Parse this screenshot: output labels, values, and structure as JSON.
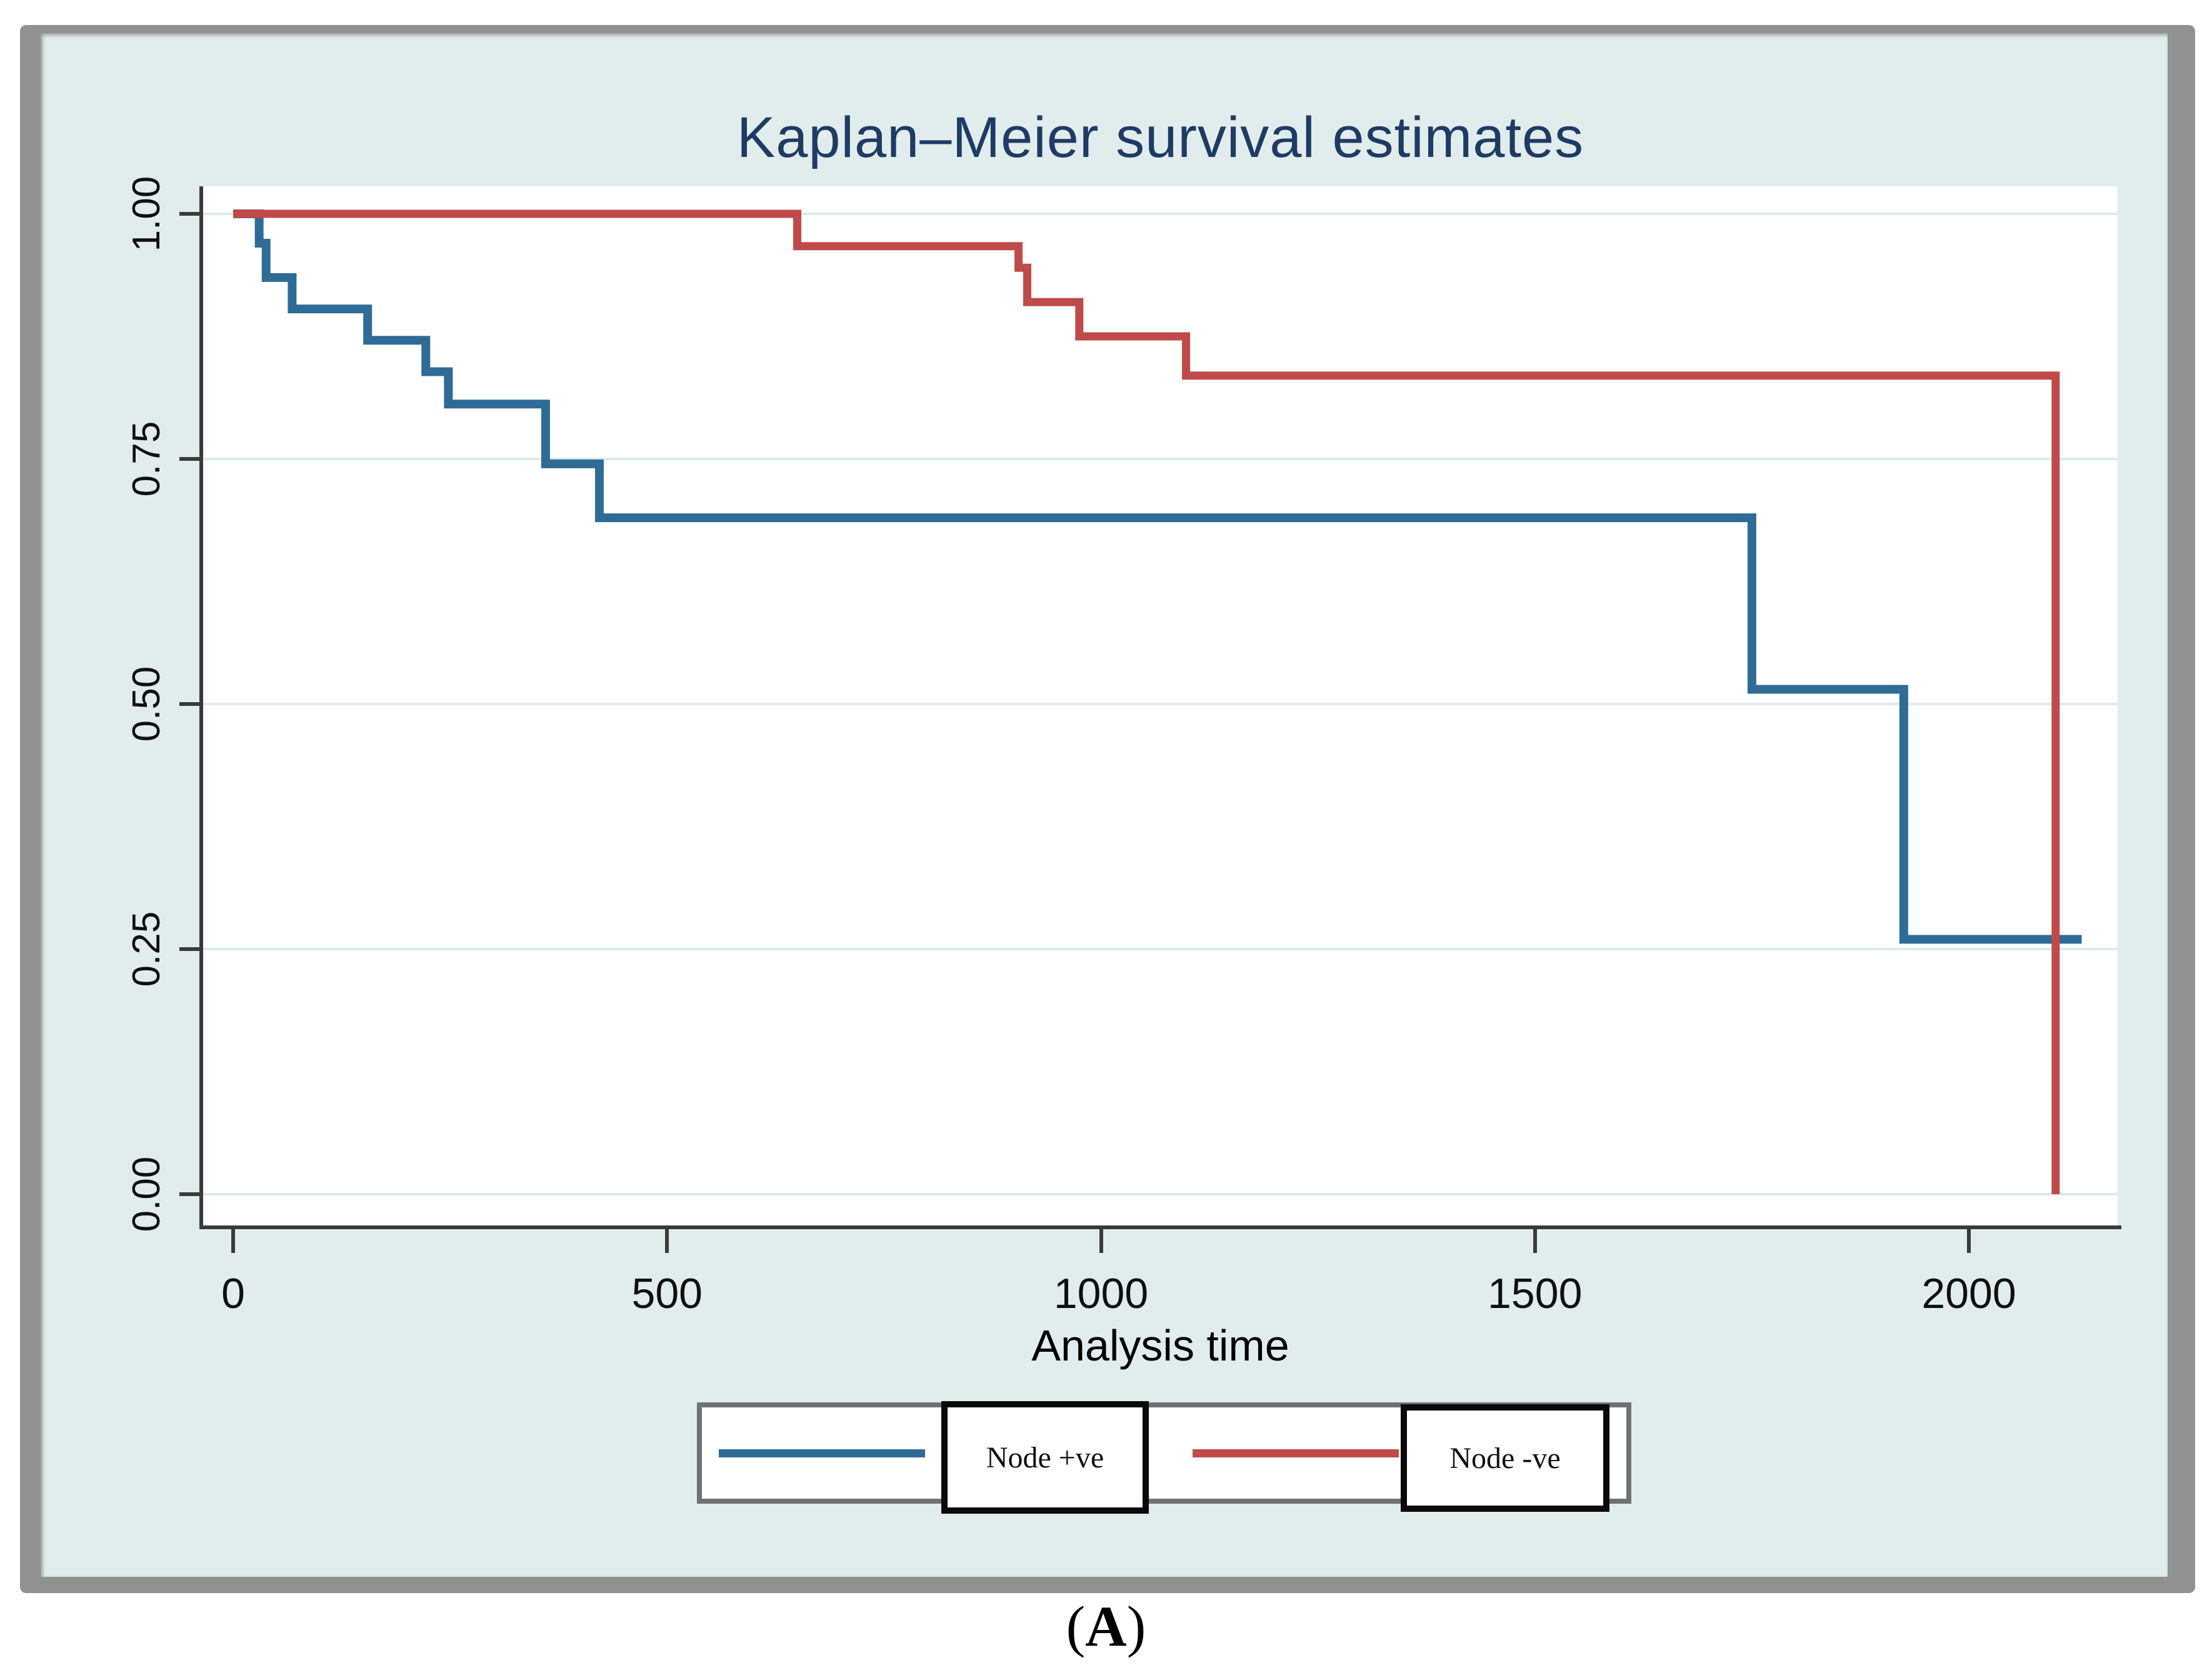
{
  "colors": {
    "figure_background": "#e1ecec",
    "frame_gray": "#8f928f",
    "plot_background": "#ffffff",
    "axis": "#3a3a3a",
    "gridline": "#dcebea",
    "title_navy": "#1e3b64",
    "node_positive_blue": "#2e6c96",
    "node_negative_red": "#c04a49"
  },
  "caption": {
    "open": "(",
    "letter": "A",
    "close": ")"
  },
  "chart_data": {
    "type": "line",
    "subtype": "step-survival",
    "title": "Kaplan–Meier survival estimates",
    "xlabel": "Analysis time",
    "ylabel": "",
    "xlim": [
      0,
      2170
    ],
    "ylim": [
      0.0,
      1.0
    ],
    "grid": "horizontal-only",
    "x_ticks": [
      0,
      500,
      1000,
      1500,
      2000
    ],
    "y_ticks": [
      {
        "label": "1.00",
        "value": 1.0
      },
      {
        "label": "0.75",
        "value": 0.75
      },
      {
        "label": "0.50",
        "value": 0.5
      },
      {
        "label": "0.25",
        "value": 0.25
      },
      {
        "label": "0.00",
        "value": 0.0
      }
    ],
    "series": [
      {
        "name": "Node +ve",
        "color": "#2e6c96",
        "stroke_width": 14,
        "points": [
          [
            0,
            1.0
          ],
          [
            30,
            1.0
          ],
          [
            30,
            0.97
          ],
          [
            38,
            0.97
          ],
          [
            38,
            0.935
          ],
          [
            68,
            0.935
          ],
          [
            68,
            0.903
          ],
          [
            155,
            0.903
          ],
          [
            155,
            0.871
          ],
          [
            222,
            0.871
          ],
          [
            222,
            0.839
          ],
          [
            248,
            0.839
          ],
          [
            248,
            0.806
          ],
          [
            360,
            0.806
          ],
          [
            360,
            0.745
          ],
          [
            422,
            0.745
          ],
          [
            422,
            0.69
          ],
          [
            1750,
            0.69
          ],
          [
            1750,
            0.515
          ],
          [
            1925,
            0.515
          ],
          [
            1925,
            0.26
          ],
          [
            2130,
            0.26
          ]
        ]
      },
      {
        "name": "Node -ve",
        "color": "#c04a49",
        "stroke_width": 13,
        "points": [
          [
            0,
            1.0
          ],
          [
            650,
            1.0
          ],
          [
            650,
            0.967
          ],
          [
            905,
            0.967
          ],
          [
            905,
            0.945
          ],
          [
            915,
            0.945
          ],
          [
            915,
            0.91
          ],
          [
            975,
            0.91
          ],
          [
            975,
            0.875
          ],
          [
            1098,
            0.875
          ],
          [
            1098,
            0.835
          ],
          [
            2100,
            0.835
          ],
          [
            2100,
            0.0
          ]
        ]
      }
    ],
    "legend": {
      "position": "bottom",
      "items": [
        {
          "label": "Node +ve",
          "color": "#2e6c96"
        },
        {
          "label": "Node -ve",
          "color": "#c04a49"
        }
      ]
    }
  }
}
